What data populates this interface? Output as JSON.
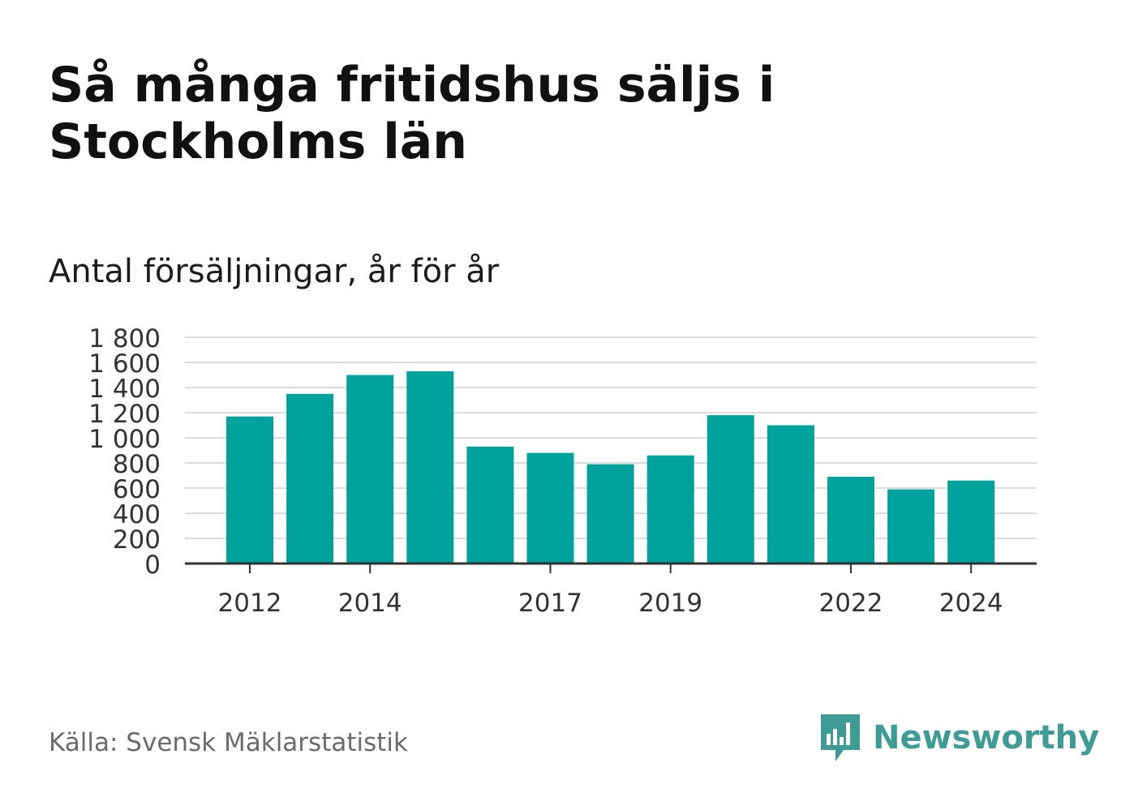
{
  "title": "Så många fritidshus säljs i Stockholms län",
  "subtitle": "Antal försäljningar, år för år",
  "source": "Källa: Svensk Mäklarstatistik",
  "brand": {
    "name": "Newsworthy",
    "icon": "newsworthy-logo-icon",
    "color": "#3d9d94"
  },
  "colors": {
    "bar": "#00a39b",
    "grid": "#dcdcdc",
    "axis": "#333333"
  },
  "chart_data": {
    "type": "bar",
    "categories": [
      "2012",
      "2013",
      "2014",
      "2015",
      "2016",
      "2017",
      "2018",
      "2019",
      "2020",
      "2021",
      "2022",
      "2023",
      "2024"
    ],
    "values": [
      1170,
      1350,
      1500,
      1530,
      930,
      880,
      790,
      860,
      1180,
      1100,
      690,
      590,
      660
    ],
    "x_tick_labels": [
      "2012",
      "2014",
      "2017",
      "2019",
      "2022",
      "2024"
    ],
    "y_ticks": [
      0,
      200,
      400,
      600,
      800,
      1000,
      1200,
      1400,
      1600,
      1800
    ],
    "y_tick_labels": [
      "0",
      "200",
      "400",
      "600",
      "800",
      "1 000",
      "1 200",
      "1 400",
      "1 600",
      "1 800"
    ],
    "ylim": [
      0,
      1800
    ],
    "grid": true,
    "title": "Så många fritidshus säljs i Stockholms län",
    "subtitle": "Antal försäljningar, år för år",
    "xlabel": "",
    "ylabel": ""
  }
}
